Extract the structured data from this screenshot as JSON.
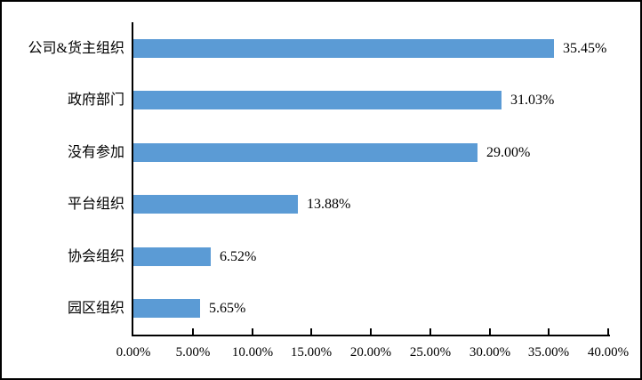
{
  "chart_data": {
    "type": "bar",
    "orientation": "horizontal",
    "title": "",
    "xlabel": "",
    "ylabel": "",
    "categories": [
      "公司&货主组织",
      "政府部门",
      "没有参加",
      "平台组织",
      "协会组织",
      "园区组织"
    ],
    "values": [
      35.45,
      31.03,
      29.0,
      13.88,
      6.52,
      5.65
    ],
    "value_labels": [
      "35.45%",
      "31.03%",
      "29.00%",
      "13.88%",
      "6.52%",
      "5.65%"
    ],
    "x_ticks": [
      0,
      5,
      10,
      15,
      20,
      25,
      30,
      35,
      40
    ],
    "x_tick_labels": [
      "0.00%",
      "5.00%",
      "10.00%",
      "15.00%",
      "20.00%",
      "25.00%",
      "30.00%",
      "35.00%",
      "40.00%"
    ],
    "xlim": [
      0,
      40
    ],
    "grid": false,
    "legend": false,
    "bar_color": "#5B9BD5",
    "axis_color": "#000000",
    "text_color": "#000000",
    "background_color": "#FFFFFF"
  }
}
